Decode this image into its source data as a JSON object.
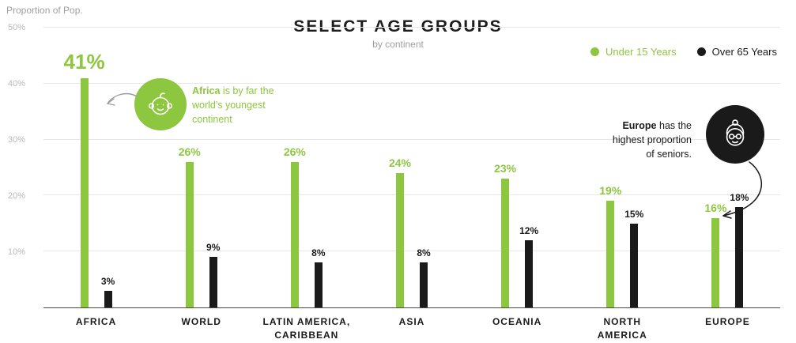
{
  "chart_data": {
    "type": "bar",
    "title": "SELECT AGE GROUPS",
    "subtitle": "by continent",
    "ylabel": "Proportion of Pop.",
    "ylim": [
      0,
      50
    ],
    "yticks": [
      {
        "value": 10,
        "label": "10%"
      },
      {
        "value": 20,
        "label": "20%"
      },
      {
        "value": 30,
        "label": "30%"
      },
      {
        "value": 40,
        "label": "40%"
      },
      {
        "value": 50,
        "label": "50%"
      }
    ],
    "grid": true,
    "legend_position": "top-right",
    "categories": [
      "AFRICA",
      "WORLD",
      "LATIN AMERICA, CARIBBEAN",
      "ASIA",
      "OCEANIA",
      "NORTH AMERICA",
      "EUROPE"
    ],
    "category_lines": [
      [
        "AFRICA"
      ],
      [
        "WORLD"
      ],
      [
        "LATIN AMERICA,",
        "CARIBBEAN"
      ],
      [
        "ASIA"
      ],
      [
        "OCEANIA"
      ],
      [
        "NORTH",
        "AMERICA"
      ],
      [
        "EUROPE"
      ]
    ],
    "series": [
      {
        "name": "Under 15 Years",
        "color": "#8dc63f",
        "values": [
          41,
          26,
          26,
          24,
          23,
          19,
          16
        ],
        "labels": [
          "41%",
          "26%",
          "26%",
          "24%",
          "23%",
          "19%",
          "16%"
        ]
      },
      {
        "name": "Over 65 Years",
        "color": "#1a1a1a",
        "values": [
          3,
          9,
          8,
          8,
          12,
          15,
          18
        ],
        "labels": [
          "3%",
          "9%",
          "8%",
          "8%",
          "12%",
          "15%",
          "18%"
        ]
      }
    ],
    "emphasis": {
      "series": "Under 15 Years",
      "category": "AFRICA",
      "label": "41%"
    },
    "annotations": [
      {
        "target": "AFRICA",
        "icon": "baby-icon",
        "color": "#8dc63f",
        "bold": "Africa",
        "text": "Africa is by far the world's youngest continent",
        "lines": [
          "Africa is by far the",
          "world's youngest",
          "continent"
        ]
      },
      {
        "target": "EUROPE",
        "icon": "senior-woman-icon",
        "color": "#1a1a1a",
        "bold": "Europe",
        "text": "Europe has the highest proportion of seniors.",
        "lines": [
          "Europe has the",
          "highest proportion",
          "of seniors."
        ]
      }
    ]
  }
}
